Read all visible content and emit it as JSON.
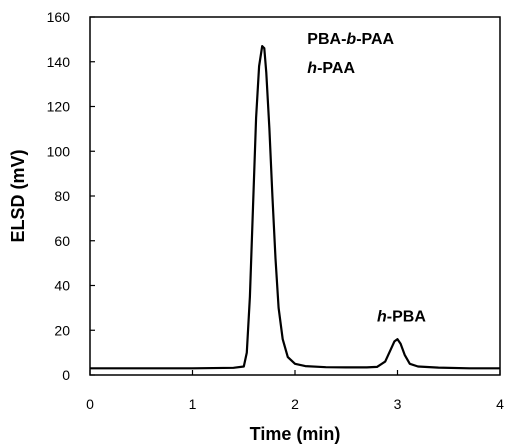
{
  "chart_data": {
    "type": "line",
    "xlabel": "Time (min)",
    "ylabel": "ELSD (mV)",
    "xlim": [
      0,
      4
    ],
    "ylim": [
      0,
      160
    ],
    "x_ticks": [
      "0",
      "1",
      "2",
      "3",
      "4"
    ],
    "y_ticks": [
      "0",
      "20",
      "40",
      "60",
      "80",
      "100",
      "120",
      "140",
      "160"
    ],
    "grid": false,
    "legend": "none",
    "series": [
      {
        "x": [
          0.0,
          0.5,
          1.0,
          1.4,
          1.5,
          1.53,
          1.56,
          1.59,
          1.62,
          1.65,
          1.68,
          1.7,
          1.72,
          1.75,
          1.78,
          1.81,
          1.84,
          1.88,
          1.93,
          2.0,
          2.1,
          2.3,
          2.5,
          2.7,
          2.8,
          2.88,
          2.93,
          2.97,
          3.0,
          3.03,
          3.07,
          3.12,
          3.2,
          3.4,
          3.7,
          4.0
        ],
        "y": [
          3.0,
          3.0,
          3.0,
          3.2,
          3.8,
          10,
          35,
          75,
          115,
          138,
          147,
          146,
          135,
          110,
          80,
          52,
          30,
          16,
          8,
          5.0,
          4.0,
          3.5,
          3.4,
          3.4,
          3.6,
          6,
          11,
          15,
          16,
          14,
          9,
          5.0,
          3.8,
          3.3,
          3.0,
          3.0
        ]
      }
    ],
    "annotations": [
      {
        "segments": [
          {
            "text": "PBA-",
            "italic": false
          },
          {
            "text": "b",
            "italic": true
          },
          {
            "text": "-PAA",
            "italic": false
          }
        ],
        "x": 2.12,
        "y": 148
      },
      {
        "segments": [
          {
            "text": "h",
            "italic": true
          },
          {
            "text": "-PAA",
            "italic": false
          }
        ],
        "x": 2.12,
        "y": 135
      },
      {
        "segments": [
          {
            "text": "h",
            "italic": true
          },
          {
            "text": "-PBA",
            "italic": false
          }
        ],
        "x": 2.8,
        "y": 24
      }
    ]
  }
}
